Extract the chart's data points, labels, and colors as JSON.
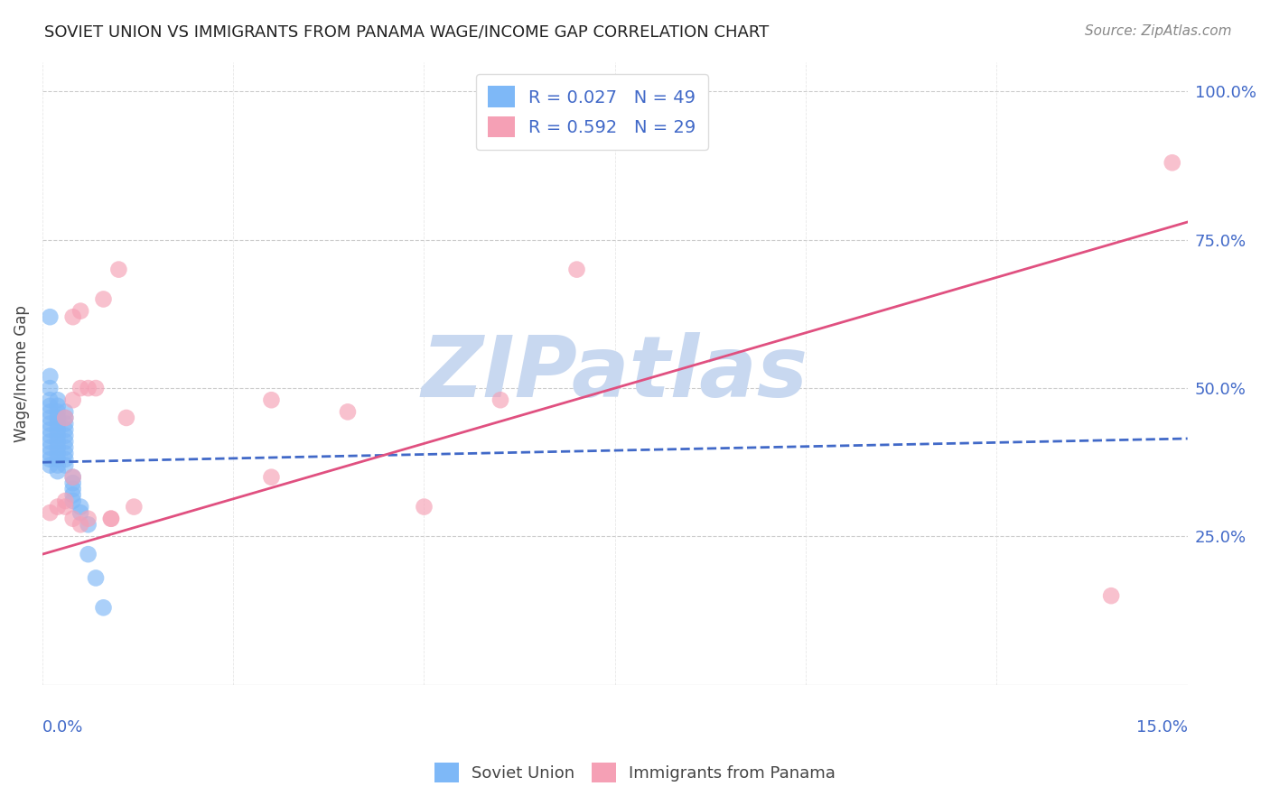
{
  "title": "SOVIET UNION VS IMMIGRANTS FROM PANAMA WAGE/INCOME GAP CORRELATION CHART",
  "source": "Source: ZipAtlas.com",
  "ylabel": "Wage/Income Gap",
  "xlim": [
    0.0,
    0.15
  ],
  "ylim": [
    0.0,
    1.05
  ],
  "ytick_labels": [
    "25.0%",
    "50.0%",
    "75.0%",
    "100.0%"
  ],
  "ytick_values": [
    0.25,
    0.5,
    0.75,
    1.0
  ],
  "series1_color": "#7EB8F7",
  "series2_color": "#F5A0B5",
  "line1_color": "#4169C8",
  "line2_color": "#E05080",
  "watermark": "ZIPatlas",
  "watermark_color": "#C8D8F0",
  "background_color": "#FFFFFF",
  "soviet_x": [
    0.001,
    0.001,
    0.001,
    0.001,
    0.001,
    0.001,
    0.001,
    0.001,
    0.001,
    0.001,
    0.001,
    0.001,
    0.001,
    0.001,
    0.001,
    0.002,
    0.002,
    0.002,
    0.002,
    0.002,
    0.002,
    0.002,
    0.002,
    0.002,
    0.002,
    0.002,
    0.002,
    0.002,
    0.003,
    0.003,
    0.003,
    0.003,
    0.003,
    0.003,
    0.003,
    0.003,
    0.003,
    0.003,
    0.004,
    0.004,
    0.004,
    0.004,
    0.004,
    0.005,
    0.005,
    0.006,
    0.006,
    0.007,
    0.008
  ],
  "soviet_y": [
    0.62,
    0.52,
    0.5,
    0.48,
    0.47,
    0.46,
    0.45,
    0.44,
    0.43,
    0.42,
    0.41,
    0.4,
    0.39,
    0.38,
    0.37,
    0.48,
    0.47,
    0.46,
    0.45,
    0.44,
    0.43,
    0.42,
    0.41,
    0.4,
    0.39,
    0.38,
    0.37,
    0.36,
    0.46,
    0.45,
    0.44,
    0.43,
    0.42,
    0.41,
    0.4,
    0.39,
    0.38,
    0.37,
    0.35,
    0.34,
    0.33,
    0.32,
    0.31,
    0.3,
    0.29,
    0.27,
    0.22,
    0.18,
    0.13
  ],
  "panama_x": [
    0.001,
    0.002,
    0.003,
    0.003,
    0.003,
    0.004,
    0.004,
    0.004,
    0.004,
    0.005,
    0.005,
    0.005,
    0.006,
    0.006,
    0.007,
    0.008,
    0.009,
    0.009,
    0.01,
    0.011,
    0.012,
    0.03,
    0.03,
    0.04,
    0.05,
    0.06,
    0.07,
    0.14,
    0.148
  ],
  "panama_y": [
    0.29,
    0.3,
    0.31,
    0.3,
    0.45,
    0.28,
    0.35,
    0.48,
    0.62,
    0.63,
    0.5,
    0.27,
    0.5,
    0.28,
    0.5,
    0.65,
    0.28,
    0.28,
    0.7,
    0.45,
    0.3,
    0.48,
    0.35,
    0.46,
    0.3,
    0.48,
    0.7,
    0.15,
    0.88
  ],
  "soviet_line_x": [
    0.0,
    0.15
  ],
  "soviet_line_y": [
    0.375,
    0.415
  ],
  "panama_line_x": [
    0.0,
    0.15
  ],
  "panama_line_y": [
    0.22,
    0.78
  ]
}
